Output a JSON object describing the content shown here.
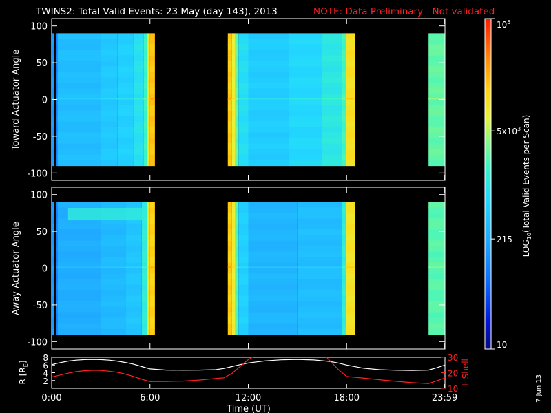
{
  "title": {
    "main": "TWINS2: Total Valid Events: 23 May (day 143), 2013",
    "note": "NOTE: Data Preliminary - Not validated"
  },
  "footer": {
    "date_stamp": "7 Jun 13"
  },
  "colors": {
    "background": "#000000",
    "axes": "#ffffff",
    "note": "#ff2020",
    "r_trace": "#ffffff",
    "lshell_trace": "#ff2020",
    "data_gap": "#000000"
  },
  "chart_data": [
    {
      "type": "heatmap",
      "panel": "toward",
      "ylabel": "Toward Actuator Angle",
      "ylim": [
        -110,
        110
      ],
      "yticks": [
        100,
        50,
        0,
        -50,
        -100
      ],
      "xlim": [
        0,
        24
      ],
      "data_y_range": [
        -90,
        90
      ],
      "columns": [
        {
          "t0": 0.0,
          "t1": 0.15,
          "level": 0.3
        },
        {
          "t0": 0.25,
          "t1": 0.35,
          "level": 0.25
        },
        {
          "t0": 0.35,
          "t1": 3.0,
          "level": 0.38
        },
        {
          "t0": 3.0,
          "t1": 4.0,
          "level": 0.41
        },
        {
          "t0": 4.0,
          "t1": 5.0,
          "level": 0.43
        },
        {
          "t0": 5.0,
          "t1": 5.6,
          "level": 0.48
        },
        {
          "t0": 5.6,
          "t1": 5.8,
          "level": 0.55
        },
        {
          "t0": 5.8,
          "t1": 6.0,
          "level": 0.73
        },
        {
          "t0": 6.0,
          "t1": 6.3,
          "level": 0.8
        },
        {
          "t0": 10.75,
          "t1": 11.0,
          "level": 0.79
        },
        {
          "t0": 11.0,
          "t1": 11.2,
          "level": 0.71
        },
        {
          "t0": 11.2,
          "t1": 11.4,
          "level": 0.6
        },
        {
          "t0": 11.4,
          "t1": 12.0,
          "level": 0.47
        },
        {
          "t0": 12.0,
          "t1": 14.5,
          "level": 0.42
        },
        {
          "t0": 14.5,
          "t1": 16.5,
          "level": 0.45
        },
        {
          "t0": 16.5,
          "t1": 17.7,
          "level": 0.5
        },
        {
          "t0": 17.7,
          "t1": 17.95,
          "level": 0.56
        },
        {
          "t0": 17.95,
          "t1": 18.5,
          "level": 0.75
        },
        {
          "t0": 23.0,
          "t1": 24.0,
          "level": 0.59
        }
      ]
    },
    {
      "type": "heatmap",
      "panel": "away",
      "ylabel": "Away Actuator Angle",
      "ylim": [
        -110,
        110
      ],
      "yticks": [
        100,
        50,
        0,
        -50,
        -100
      ],
      "xlim": [
        0,
        24
      ],
      "data_y_range": [
        -90,
        90
      ],
      "columns": [
        {
          "t0": 0.0,
          "t1": 0.15,
          "level": 0.3
        },
        {
          "t0": 0.25,
          "t1": 0.35,
          "level": 0.25
        },
        {
          "t0": 0.35,
          "t1": 3.0,
          "level": 0.34
        },
        {
          "t0": 3.0,
          "t1": 4.5,
          "level": 0.37
        },
        {
          "t0": 4.5,
          "t1": 5.5,
          "level": 0.4
        },
        {
          "t0": 5.5,
          "t1": 5.8,
          "level": 0.52
        },
        {
          "t0": 5.8,
          "t1": 6.0,
          "level": 0.74
        },
        {
          "t0": 6.0,
          "t1": 6.3,
          "level": 0.78
        },
        {
          "t0": 10.75,
          "t1": 11.0,
          "level": 0.79
        },
        {
          "t0": 11.0,
          "t1": 11.2,
          "level": 0.72
        },
        {
          "t0": 11.2,
          "t1": 11.4,
          "level": 0.58
        },
        {
          "t0": 11.4,
          "t1": 12.0,
          "level": 0.43
        },
        {
          "t0": 12.0,
          "t1": 15.0,
          "level": 0.36
        },
        {
          "t0": 15.0,
          "t1": 17.7,
          "level": 0.38
        },
        {
          "t0": 17.7,
          "t1": 17.95,
          "level": 0.52
        },
        {
          "t0": 17.95,
          "t1": 18.5,
          "level": 0.74
        },
        {
          "t0": 23.0,
          "t1": 24.0,
          "level": 0.58
        }
      ],
      "feature": {
        "t0": 1.0,
        "t1": 5.8,
        "y0": 65,
        "y1": 82,
        "level": 0.52
      }
    },
    {
      "type": "line",
      "panel": "orbit",
      "xlabel": "Time (UT)",
      "xticks": [
        {
          "t": 0,
          "label": "0:00"
        },
        {
          "t": 6,
          "label": "6:00"
        },
        {
          "t": 12,
          "label": "12:00"
        },
        {
          "t": 18,
          "label": "18:00"
        },
        {
          "t": 23.983,
          "label": "23:59"
        }
      ],
      "left_axis": {
        "label": "R [R",
        "sub": "E",
        "close": "]",
        "ylim": [
          0,
          8
        ],
        "ticks": [
          2,
          4,
          6,
          8
        ]
      },
      "right_axis": {
        "label": "L Shell",
        "ylim": [
          10,
          30
        ],
        "ticks": [
          10,
          20,
          30
        ]
      },
      "series": [
        {
          "axis": "left",
          "x": [
            0,
            0.5,
            1,
            1.5,
            2,
            2.5,
            3,
            3.5,
            4,
            4.5,
            5,
            5.5,
            6,
            7,
            8,
            9,
            10,
            10.5,
            11,
            11.5,
            12,
            12.5,
            13,
            14,
            15,
            16,
            17,
            17.5,
            18,
            19,
            20,
            21,
            22,
            23,
            23.5,
            24
          ],
          "y": [
            6.1,
            6.6,
            7.0,
            7.25,
            7.4,
            7.45,
            7.4,
            7.25,
            7.0,
            6.65,
            6.2,
            5.6,
            5.0,
            4.7,
            4.65,
            4.7,
            4.8,
            5.1,
            5.6,
            6.1,
            6.5,
            6.8,
            7.05,
            7.35,
            7.45,
            7.3,
            6.9,
            6.5,
            6.0,
            5.2,
            4.8,
            4.65,
            4.6,
            4.7,
            5.3,
            6.0
          ]
        },
        {
          "axis": "right",
          "x": [
            0,
            0.5,
            1,
            1.5,
            2,
            2.5,
            3,
            3.5,
            4,
            4.5,
            5,
            5.5,
            6,
            7,
            8,
            9,
            10,
            10.5,
            11,
            11.5,
            12,
            12.4,
            16.7,
            17,
            17.5,
            18,
            19,
            20,
            21,
            22,
            23,
            23.5,
            24
          ],
          "y": [
            17.2,
            18.5,
            19.7,
            20.7,
            21.3,
            21.6,
            21.5,
            21.0,
            20.3,
            19.1,
            17.6,
            15.8,
            14.3,
            14.4,
            14.6,
            15.3,
            16.3,
            16.7,
            19.5,
            24.0,
            28.5,
            31.0,
            31.0,
            27.5,
            22.0,
            17.6,
            16.6,
            15.5,
            14.5,
            13.6,
            13.0,
            14.8,
            16.6
          ]
        }
      ]
    },
    {
      "type": "heatmap",
      "panel": "colorbar",
      "ylabel": "LOG",
      "ylabel_sub": "10",
      "ylabel_rest": "(Total Valid Events per Scan)",
      "ticks": [
        {
          "frac": 1.0,
          "base": "10",
          "exp": "5"
        },
        {
          "frac": 0.66,
          "base": "5x10",
          "exp": "3"
        },
        {
          "frac": 0.333,
          "base": "215",
          "exp": ""
        },
        {
          "frac": 0.0,
          "base": "10",
          "exp": ""
        }
      ]
    }
  ]
}
